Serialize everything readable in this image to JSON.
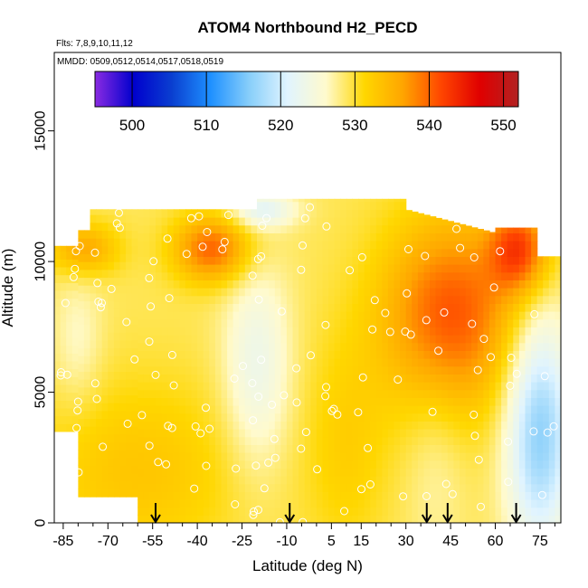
{
  "chart_data": {
    "type": "heatmap",
    "title": "ATOM4 Northbound H2_PECD",
    "subtitle_flights": "Flts: 7,8,9,10,11,12",
    "subtitle_dates": "MMDD: 0509,0512,0514,0517,0518,0519",
    "xlabel": "Latitude (deg N)",
    "ylabel": "Altitude (m)",
    "xlim": [
      -88,
      82
    ],
    "ylim": [
      0,
      18000
    ],
    "x_ticks": [
      -85,
      -70,
      -55,
      -40,
      -25,
      -10,
      5,
      15,
      30,
      45,
      60,
      75
    ],
    "x_minor_ticks": [
      -80,
      -75,
      -65,
      -60,
      -50,
      -45,
      -35,
      -30,
      -20,
      -15,
      -5,
      0,
      10,
      20,
      25,
      35,
      40,
      50,
      55,
      65,
      70,
      80
    ],
    "y_ticks": [
      0,
      5000,
      10000,
      15000
    ],
    "colorbar": {
      "min": 495,
      "max": 552,
      "ticks": [
        500,
        510,
        520,
        530,
        540,
        550
      ],
      "colors": [
        "#8a2be2",
        "#0000cd",
        "#0a3fd0",
        "#1e90ff",
        "#87cefa",
        "#e0f4ff",
        "#fffacd",
        "#ffd700",
        "#ffa500",
        "#ff4500",
        "#e00000",
        "#b22222"
      ]
    },
    "profile_arrow_latitudes": [
      -54,
      -9,
      37,
      44,
      67
    ],
    "grid": false,
    "legend": "colorbar-top-inset"
  }
}
